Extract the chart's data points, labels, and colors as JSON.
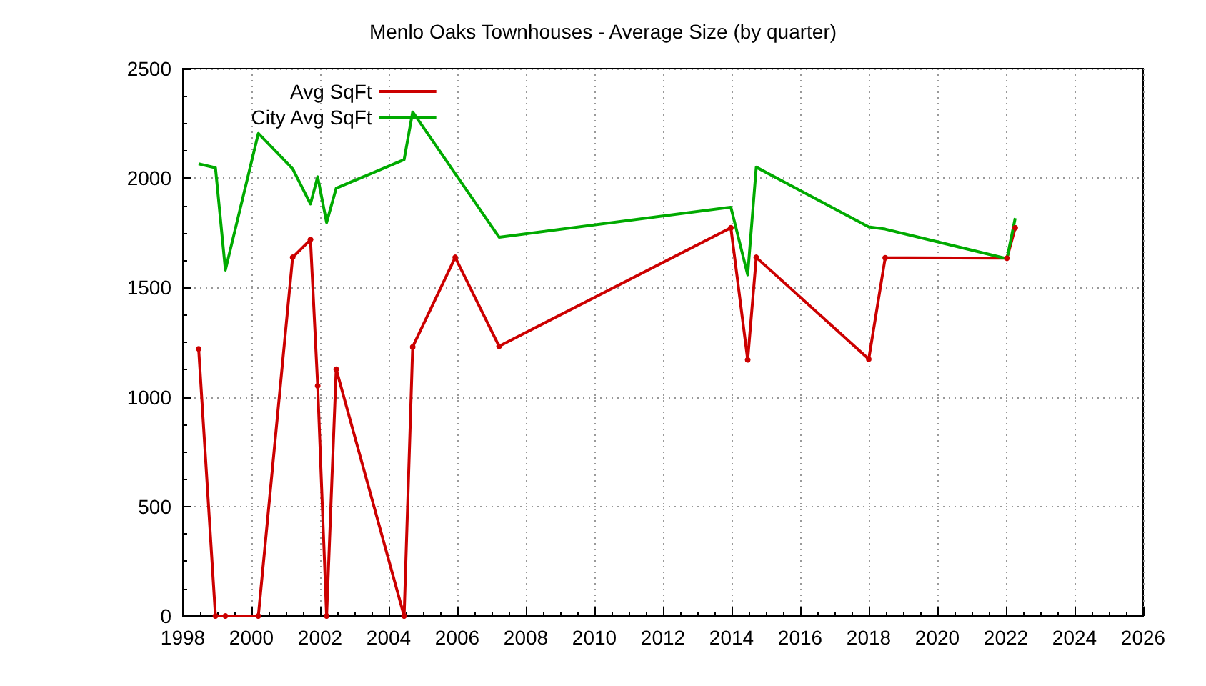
{
  "chart_data": {
    "type": "line",
    "title": "Menlo Oaks Townhouses - Average Size (by quarter)",
    "x": [
      1998.46,
      1998.95,
      1999.24,
      2000.2,
      2001.2,
      2001.72,
      2001.93,
      2002.19,
      2002.47,
      2004.45,
      2004.7,
      2005.94,
      2007.22,
      2013.98,
      2014.47,
      2014.72,
      2018.0,
      2018.48,
      2022.03,
      2022.27
    ],
    "series": [
      {
        "name": "Avg SqFt",
        "color": "#cc0000",
        "marker": "circle",
        "values": [
          1220,
          0,
          0,
          0,
          1638,
          1719,
          1051,
          0,
          1127,
          0,
          1229,
          1638,
          1232,
          1773,
          1170,
          1638,
          1173,
          1636,
          1634,
          1773
        ]
      },
      {
        "name": "City Avg SqFt",
        "color": "#00aa00",
        "marker": "none",
        "values": [
          2065,
          2047,
          1580,
          2204,
          2043,
          1882,
          2006,
          1797,
          1954,
          2084,
          2302,
          null,
          1730,
          1867,
          1558,
          2050,
          1777,
          1767,
          1632,
          1817
        ]
      }
    ],
    "xlim": [
      1998,
      2026
    ],
    "xticks": [
      1998,
      2000,
      2002,
      2004,
      2006,
      2008,
      2010,
      2012,
      2014,
      2016,
      2018,
      2020,
      2022,
      2024,
      2026
    ],
    "ylim": [
      0,
      2500
    ],
    "yticks": [
      0,
      500,
      1000,
      1500,
      2000,
      2500
    ],
    "grid": true,
    "legend": "top left"
  }
}
